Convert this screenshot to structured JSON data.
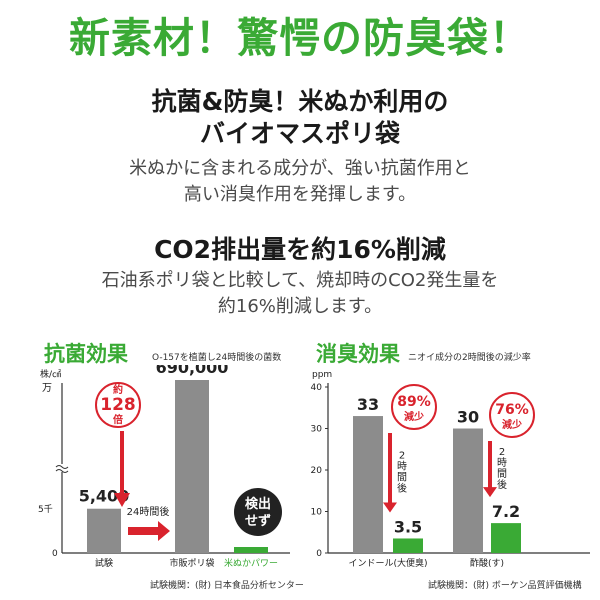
{
  "header": {
    "headline": "新素材！驚愕の防臭袋！",
    "feature1_line1": "抗菌&防臭！米ぬか利用の",
    "feature1_line2": "バイオマスポリ袋",
    "feature1_desc_line1": "米ぬかに含まれる成分が、強い抗菌作用と",
    "feature1_desc_line2": "高い消臭作用を発揮します。",
    "feature2_title": "CO2排出量を約16%削減",
    "feature2_desc_line1": "石油系ポリ袋と比較して、焼却時のCO2発生量を",
    "feature2_desc_line2": "約16%削減します。"
  },
  "colors": {
    "accent_green": "#3aaa35",
    "bar_gray": "#8c8c8c",
    "highlight_red": "#d9232d",
    "badge_dark": "#222222"
  },
  "chart_data": [
    {
      "type": "bar",
      "title": "抗菌効果",
      "subtitle": "O-157を植菌し24時間後の菌数",
      "unit_label": "株/㎠",
      "y_axis_labels": [
        "万",
        "5千",
        "0"
      ],
      "axis_break": true,
      "categories": [
        "試験",
        "市販ポリ袋",
        "米ぬかパワー"
      ],
      "values": [
        5400,
        690000,
        0
      ],
      "value_labels": [
        "5,400",
        "690,000",
        ""
      ],
      "step_label": "24時間後",
      "multiplier_badge": {
        "line1": "約",
        "line2": "128",
        "line3": "倍"
      },
      "result_badge": {
        "line1": "検出",
        "line2": "せず"
      },
      "source": "試験機関：(財) 日本食品分析センター"
    },
    {
      "type": "bar",
      "title": "消臭効果",
      "subtitle": "ニオイ成分の2時間後の減少率",
      "unit_label": "ppm",
      "ylim": [
        0,
        40
      ],
      "yticks": [
        0,
        10,
        20,
        30,
        40
      ],
      "groups": [
        "インドール(大便臭)",
        "酢酸(す)"
      ],
      "series": [
        {
          "values": [
            33,
            30
          ]
        },
        {
          "values": [
            3.5,
            7.2
          ]
        }
      ],
      "value_labels": [
        [
          "33",
          "3.5"
        ],
        [
          "30",
          "7.2"
        ]
      ],
      "time_labels": [
        "2時間後",
        "2時間後"
      ],
      "reduction_badges": [
        {
          "percent": "89%",
          "text": "減少"
        },
        {
          "percent": "76%",
          "text": "減少"
        }
      ],
      "source": "試験機関：(財) ボーケン品質評価機構"
    }
  ]
}
